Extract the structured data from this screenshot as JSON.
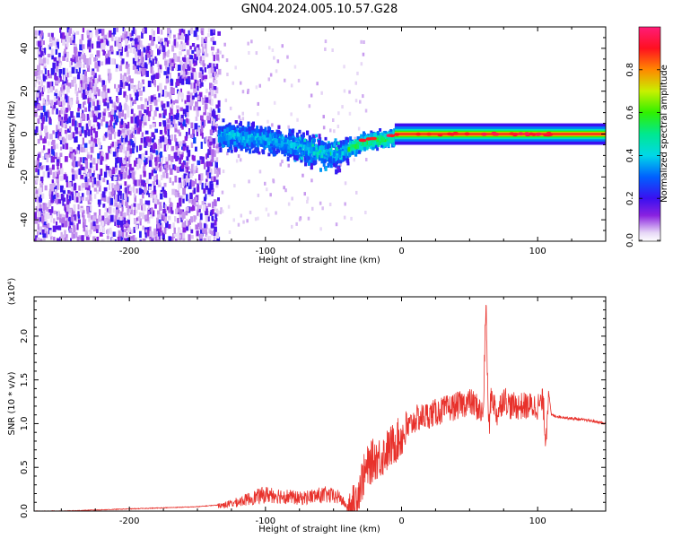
{
  "figure": {
    "title": "GN04.2024.005.10.57.G28"
  },
  "colorbar": {
    "label": "Normalized spectral amplitude",
    "ticks": [
      0.0,
      0.2,
      0.4,
      0.6,
      0.8
    ],
    "tick_labels": [
      "0.0",
      "0.2",
      "0.4",
      "0.6",
      "0.8"
    ]
  },
  "chart_data": [
    {
      "type": "heatmap",
      "title": "",
      "xlabel": "Height of straight line (km)",
      "ylabel": "Frequency (Hz)",
      "xlim": [
        -270,
        150
      ],
      "ylim": [
        -50,
        50
      ],
      "xticks": [
        -200,
        -100,
        0,
        100
      ],
      "xtick_labels": [
        "-200",
        "-100",
        "0",
        "100"
      ],
      "yticks": [
        -40,
        -20,
        0,
        20,
        40
      ],
      "ytick_labels": [
        "-40",
        "-20",
        "0",
        "20",
        "40"
      ],
      "colorscale": "normalized spectral amplitude 0-1 (purple-blue-cyan-green-yellow-red-magenta)",
      "regions": [
        {
          "x_range": [
            -270,
            -135
          ],
          "freq_range": [
            -50,
            50
          ],
          "amplitude": 0.05,
          "pattern": "diffuse scattered noise"
        },
        {
          "x_range": [
            -135,
            -40
          ],
          "freq_range": [
            -20,
            15
          ],
          "amplitude": 0.3,
          "pattern": "band centred near 0 Hz sloping to about -12 Hz"
        },
        {
          "x_range": [
            -40,
            5
          ],
          "freq_range": [
            -8,
            6
          ],
          "amplitude": 0.6,
          "pattern": "narrowing line approaching 0 Hz"
        },
        {
          "x_range": [
            5,
            150
          ],
          "freq_range": [
            -2,
            2
          ],
          "amplitude": 0.9,
          "pattern": "sharp constant line at 0 Hz"
        }
      ],
      "ridge": {
        "x": [
          -130,
          -110,
          -90,
          -70,
          -50,
          -40,
          -30,
          -20,
          -10,
          0,
          10,
          50,
          100,
          150
        ],
        "freq": [
          0,
          -1,
          -3,
          -6,
          -9,
          -6,
          -3,
          -2,
          -1,
          0,
          0,
          0,
          0,
          0
        ]
      }
    },
    {
      "type": "line",
      "title": "",
      "xlabel": "Height of straight line (km)",
      "ylabel": "SNR (10 * v/v)",
      "y_scale_note": "(x10⁴)",
      "xlim": [
        -270,
        150
      ],
      "ylim": [
        0,
        2.45
      ],
      "xticks": [
        -200,
        -100,
        0,
        100
      ],
      "xtick_labels": [
        "-200",
        "-100",
        "0",
        "100"
      ],
      "yticks": [
        0.0,
        0.5,
        1.0,
        1.5,
        2.0
      ],
      "ytick_labels": [
        "0.0",
        "0.5",
        "1.0",
        "1.5",
        "2.0"
      ],
      "color": "#e8312b",
      "series": [
        {
          "x": [
            -270,
            -250,
            -230,
            -210,
            -190,
            -170,
            -150,
            -135,
            -125,
            -115,
            -105,
            -100,
            -95,
            -85,
            -75,
            -65,
            -55,
            -45,
            -40,
            -35,
            -30,
            -25,
            -20,
            -15,
            -10,
            -5,
            0,
            5,
            10,
            20,
            30,
            40,
            50,
            55,
            60,
            62,
            64,
            66,
            70,
            75,
            80,
            90,
            100,
            104,
            106,
            108,
            110,
            115,
            120,
            130,
            140,
            150
          ],
          "y": [
            0.0,
            0.0,
            0.01,
            0.02,
            0.03,
            0.04,
            0.05,
            0.07,
            0.1,
            0.15,
            0.2,
            0.22,
            0.22,
            0.2,
            0.17,
            0.2,
            0.22,
            0.18,
            0.05,
            0.06,
            0.32,
            0.5,
            0.6,
            0.62,
            0.7,
            0.78,
            0.85,
            0.95,
            1.05,
            1.1,
            1.15,
            1.2,
            1.25,
            1.2,
            1.1,
            2.4,
            0.9,
            1.35,
            1.1,
            1.3,
            1.2,
            1.2,
            1.2,
            1.25,
            0.8,
            1.38,
            1.1,
            1.08,
            1.07,
            1.05,
            1.03,
            1.0
          ]
        }
      ]
    }
  ]
}
